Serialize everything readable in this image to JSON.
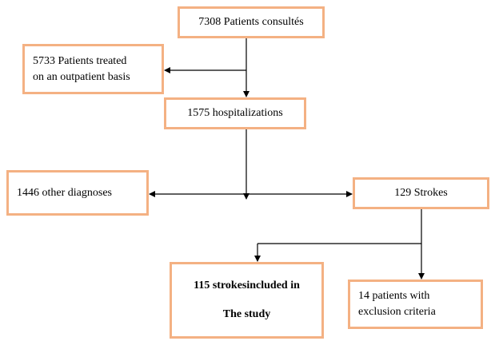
{
  "nodes": [
    {
      "lines": [
        "7308 Patients consultés"
      ]
    },
    {
      "lines": [
        "5733 Patients treated",
        "on an outpatient basis"
      ]
    },
    {
      "lines": [
        "1575 hospitalizations"
      ]
    },
    {
      "lines": [
        "1446 other diagnoses"
      ]
    },
    {
      "lines": [
        "129 Strokes"
      ]
    },
    {
      "lines": [
        "115 strokesincluded  in",
        "The study"
      ]
    },
    {
      "lines": [
        "14 patients with",
        "exclusion criteria"
      ]
    }
  ]
}
